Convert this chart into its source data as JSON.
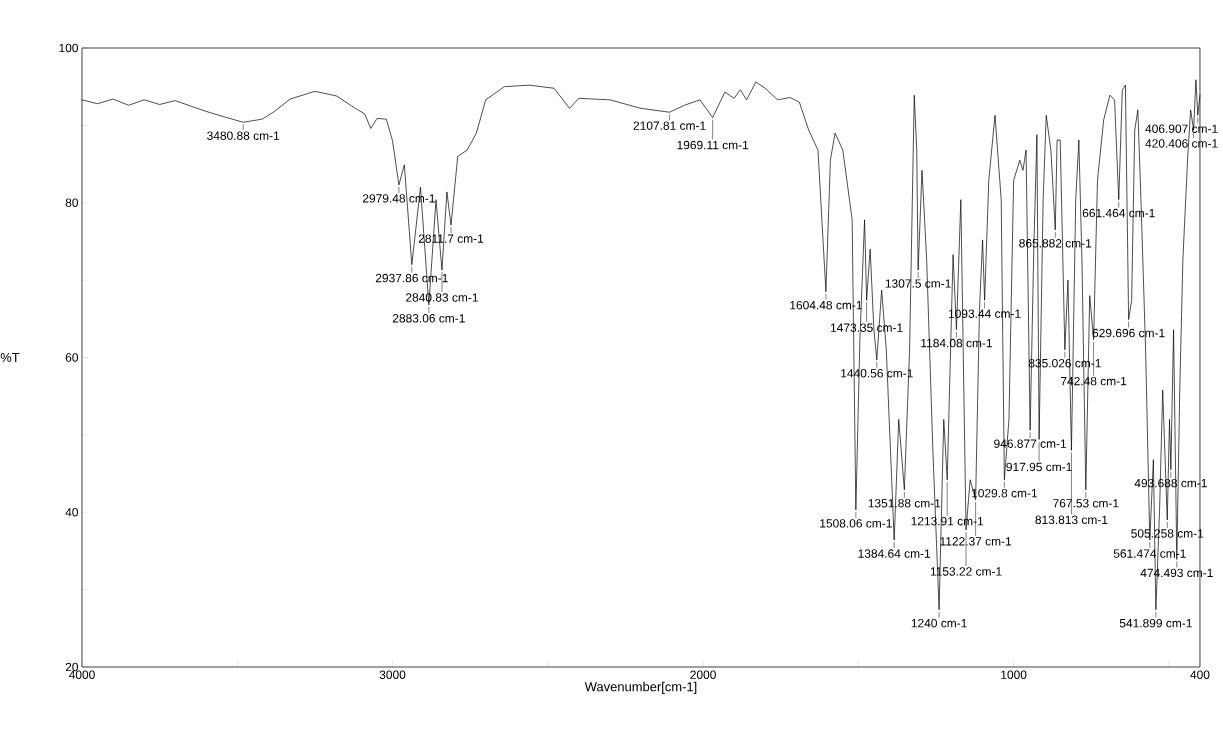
{
  "chart_data": {
    "type": "line",
    "xlabel": "Wavenumber[cm-1]",
    "ylabel": "%T",
    "xlim": [
      4000,
      400
    ],
    "ylim": [
      20,
      100
    ],
    "xticks": [
      4000,
      {
        "value": 3500,
        "label": null
      },
      3000,
      {
        "value": 2500,
        "label": null
      },
      2000,
      {
        "value": 1500,
        "label": null
      },
      1000,
      {
        "value": 500,
        "label": null
      },
      400
    ],
    "yticks": [
      20,
      {
        "value": 30,
        "label": null
      },
      40,
      {
        "value": 50,
        "label": null
      },
      60,
      {
        "value": 70,
        "label": null
      },
      80,
      {
        "value": 90,
        "label": null
      },
      100
    ],
    "grid": false,
    "marker": "none",
    "line_style": "solid",
    "series": [
      {
        "color": "#000000",
        "x": [
          4000,
          3950,
          3900,
          3850,
          3800,
          3750,
          3700,
          3650,
          3600,
          3550,
          3480.88,
          3420,
          3380,
          3330,
          3250,
          3180,
          3120,
          3090,
          3070,
          3050,
          3020,
          3000,
          2979.48,
          2962,
          2937.86,
          2910,
          2883.06,
          2860,
          2840.83,
          2825,
          2811.7,
          2790,
          2760,
          2730,
          2700,
          2640,
          2560,
          2480,
          2430,
          2400,
          2300,
          2200,
          2107.81,
          2060,
          2010,
          1969.11,
          1930,
          1900,
          1880,
          1860,
          1830,
          1800,
          1760,
          1720,
          1690,
          1660,
          1630,
          1604.48,
          1590,
          1575,
          1550,
          1520,
          1508.06,
          1495,
          1480,
          1473.35,
          1462,
          1450,
          1440.56,
          1425,
          1410,
          1384.64,
          1370,
          1351.88,
          1335,
          1320,
          1312,
          1307.5,
          1295,
          1280,
          1260,
          1240,
          1225,
          1213.91,
          1195,
          1184.08,
          1170,
          1153.22,
          1140,
          1122.37,
          1110,
          1100,
          1093.44,
          1080,
          1060,
          1040,
          1029.8,
          1015,
          1000,
          980,
          970,
          960,
          946.877,
          935,
          925,
          917.95,
          905,
          895,
          880,
          865.882,
          860,
          850,
          835.026,
          825,
          813.813,
          800,
          790,
          780,
          767.53,
          755,
          742.48,
          730,
          710,
          690,
          675,
          661.464,
          650,
          640,
          629.696,
          620,
          610,
          600,
          590,
          575,
          561.474,
          550,
          541.899,
          530,
          520,
          505.258,
          498,
          493.688,
          485,
          474.493,
          465,
          455,
          440,
          430,
          420.406,
          413,
          406.907,
          400
        ],
        "values": [
          93.3,
          92.8,
          93.4,
          92.6,
          93.3,
          92.7,
          93.2,
          92.5,
          91.8,
          91.2,
          90.4,
          90.8,
          91.8,
          93.4,
          94.4,
          93.8,
          92.2,
          91.5,
          89.6,
          90.9,
          90.8,
          88,
          82.3,
          84.9,
          72,
          82,
          66.8,
          80.4,
          71.3,
          81.4,
          77.1,
          86,
          86.8,
          89,
          93.3,
          95,
          95.2,
          94.8,
          92.2,
          93.5,
          93.3,
          92.2,
          91.7,
          92.6,
          93.3,
          91,
          94.3,
          93.5,
          94.6,
          93.3,
          95.6,
          94.8,
          93.3,
          93.6,
          93,
          89.4,
          86.8,
          68.5,
          85.5,
          89,
          86.8,
          77.8,
          40.3,
          62.3,
          77.8,
          67.4,
          74,
          63.6,
          59.7,
          68.7,
          61,
          36.4,
          52,
          42.9,
          61,
          93.9,
          86.8,
          71.3,
          84.2,
          72.6,
          48,
          27.4,
          52,
          44.2,
          73.3,
          63.6,
          80.4,
          37.7,
          44.2,
          41.6,
          66.1,
          75.2,
          67.4,
          82.9,
          91.3,
          80.4,
          44.2,
          52,
          82.9,
          85.5,
          84.2,
          86.8,
          50.6,
          74,
          88.8,
          49.4,
          80.4,
          91.3,
          86.8,
          76.5,
          88.1,
          88.1,
          61,
          70,
          48,
          80.4,
          88.1,
          72.6,
          42.9,
          68,
          62.3,
          82.9,
          90.7,
          93.9,
          93.3,
          80.4,
          94.6,
          95.2,
          64.9,
          67.4,
          89.4,
          92,
          80.4,
          61,
          36.4,
          46.8,
          27.4,
          40.3,
          55.8,
          39,
          52,
          45.5,
          63.6,
          33.9,
          55.8,
          72.6,
          85.5,
          92,
          89.4,
          95.9,
          91.3,
          93.9
        ]
      }
    ],
    "annotations": [
      {
        "text": "3480.88 cm-1",
        "x": 3480.88,
        "y": 90.4
      },
      {
        "text": "2979.48 cm-1",
        "x": 2979.48,
        "y": 82.3
      },
      {
        "text": "2937.86 cm-1",
        "x": 2937.86,
        "y": 72
      },
      {
        "text": "2883.06 cm-1",
        "x": 2883.06,
        "y": 66.8
      },
      {
        "text": "2840.83 cm-1",
        "x": 2840.83,
        "y": 71.3
      },
      {
        "text": "2811.7 cm-1",
        "x": 2811.7,
        "y": 77.1
      },
      {
        "text": "2107.81 cm-1",
        "x": 2107.81,
        "y": 91.7
      },
      {
        "text": "1969.11 cm-1",
        "x": 1969.11,
        "y": 91
      },
      {
        "text": "1604.48 cm-1",
        "x": 1604.48,
        "y": 68.5
      },
      {
        "text": "1508.06 cm-1",
        "x": 1508.06,
        "y": 40.3
      },
      {
        "text": "1473.35 cm-1",
        "x": 1473.35,
        "y": 67.4
      },
      {
        "text": "1440.56 cm-1",
        "x": 1440.56,
        "y": 59.7
      },
      {
        "text": "1384.64 cm-1",
        "x": 1384.64,
        "y": 36.4
      },
      {
        "text": "1351.88 cm-1",
        "x": 1351.88,
        "y": 42.9
      },
      {
        "text": "1307.5 cm-1",
        "x": 1307.5,
        "y": 71.3
      },
      {
        "text": "1240 cm-1",
        "x": 1240,
        "y": 27.4
      },
      {
        "text": "1213.91 cm-1",
        "x": 1213.91,
        "y": 44.2
      },
      {
        "text": "1184.08 cm-1",
        "x": 1184.08,
        "y": 63.6
      },
      {
        "text": "1153.22 cm-1",
        "x": 1153.22,
        "y": 37.7
      },
      {
        "text": "1122.37 cm-1",
        "x": 1122.37,
        "y": 41.6
      },
      {
        "text": "1093.44 cm-1",
        "x": 1093.44,
        "y": 67.4
      },
      {
        "text": "1029.8 cm-1",
        "x": 1029.8,
        "y": 44.2
      },
      {
        "text": "946.877 cm-1",
        "x": 946.877,
        "y": 50.6
      },
      {
        "text": "917.95 cm-1",
        "x": 917.95,
        "y": 49.4
      },
      {
        "text": "865.882 cm-1",
        "x": 865.882,
        "y": 76.5
      },
      {
        "text": "835.026 cm-1",
        "x": 835.026,
        "y": 61
      },
      {
        "text": "813.813 cm-1",
        "x": 813.813,
        "y": 48
      },
      {
        "text": "767.53 cm-1",
        "x": 767.53,
        "y": 42.9
      },
      {
        "text": "742.48 cm-1",
        "x": 742.48,
        "y": 62.3
      },
      {
        "text": "661.464 cm-1",
        "x": 661.464,
        "y": 80.4
      },
      {
        "text": "629.696 cm-1",
        "x": 629.696,
        "y": 64.9
      },
      {
        "text": "561.474 cm-1",
        "x": 561.474,
        "y": 36.4
      },
      {
        "text": "541.899 cm-1",
        "x": 541.899,
        "y": 27.4
      },
      {
        "text": "505.258 cm-1",
        "x": 505.258,
        "y": 39
      },
      {
        "text": "493.688 cm-1",
        "x": 493.688,
        "y": 45.5
      },
      {
        "text": "474.493 cm-1",
        "x": 474.493,
        "y": 33.9
      },
      {
        "text": "420.406 cm-1",
        "x": 420.406,
        "y": 89.4
      },
      {
        "text": "406.907 cm-1",
        "x": 406.907,
        "y": 91.3
      }
    ]
  }
}
